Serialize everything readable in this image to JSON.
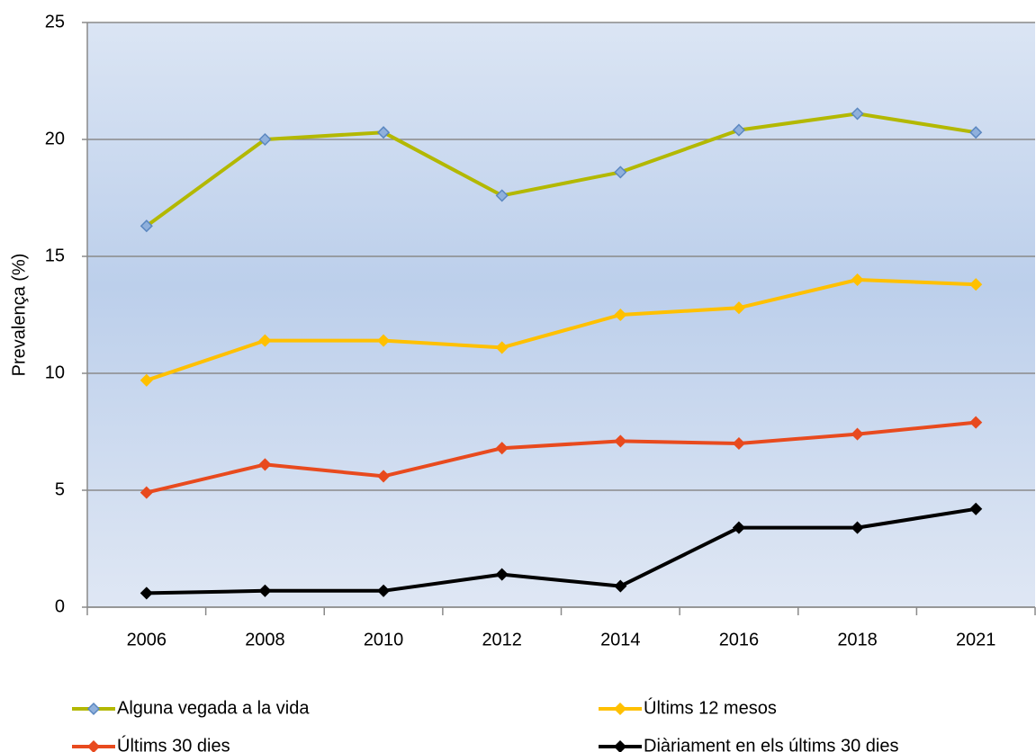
{
  "chart_data": {
    "type": "line",
    "y_label": "Prevalença (%)",
    "categories": [
      "2006",
      "2008",
      "2010",
      "2012",
      "2014",
      "2016",
      "2018",
      "2021"
    ],
    "series": [
      {
        "name": "Alguna vegada a la vida",
        "color": "#b3b800",
        "marker_color": "#8fb0dc",
        "values": [
          16.3,
          20.0,
          20.3,
          17.6,
          18.6,
          20.4,
          21.1,
          20.3
        ]
      },
      {
        "name": "Últims 12 mesos",
        "color": "#ffc000",
        "values": [
          9.7,
          11.4,
          11.4,
          11.1,
          12.5,
          12.8,
          14.0,
          13.8
        ]
      },
      {
        "name": "Últims 30 dies",
        "color": "#e84a1e",
        "values": [
          4.9,
          6.1,
          5.6,
          6.8,
          7.1,
          7.0,
          7.4,
          7.9
        ]
      },
      {
        "name": "Diàriament en els últims 30 dies",
        "color": "#000000",
        "values": [
          0.6,
          0.7,
          0.7,
          1.4,
          0.9,
          3.4,
          3.4,
          4.2
        ]
      }
    ],
    "ylim": [
      0,
      25
    ],
    "yticks": [
      0,
      5,
      10,
      15,
      20,
      25
    ],
    "grid": true,
    "legend": "bottom"
  }
}
